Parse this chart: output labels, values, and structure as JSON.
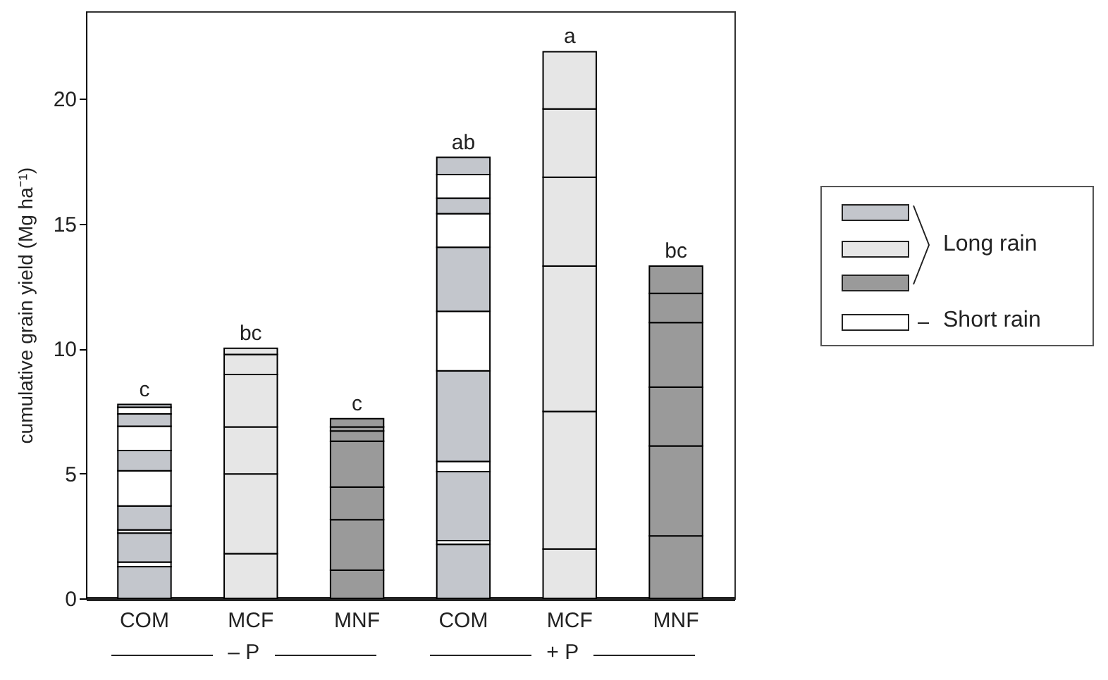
{
  "chart_data": {
    "type": "bar",
    "stacked": true,
    "ylabel": "cumulative grain yield (Mg ha⁻¹)",
    "categories": [
      "COM",
      "MCF",
      "MNF",
      "COM",
      "MCF",
      "MNF"
    ],
    "ylim": [
      0,
      23.5
    ],
    "yticks": [
      0,
      5,
      10,
      15,
      20
    ],
    "grid": false,
    "series": [
      {
        "colors": [
          "#c3c6cc",
          "#e6e6e6",
          "#9a9a9a",
          "#c3c6cc",
          "#e6e6e6",
          "#9a9a9a"
        ],
        "values": [
          1.27,
          1.79,
          1.13,
          2.16,
          1.97,
          2.5
        ]
      },
      {
        "colors": [
          "#ffffff",
          "#e6e6e6",
          "#9a9a9a",
          "#ffffff",
          "#e6e6e6",
          "#9a9a9a"
        ],
        "values": [
          0.18,
          3.19,
          2.02,
          0.15,
          5.51,
          3.6
        ]
      },
      {
        "colors": [
          "#c3c6cc",
          "#e6e6e6",
          "#9a9a9a",
          "#c3c6cc",
          "#e6e6e6",
          "#9a9a9a"
        ],
        "values": [
          1.16,
          1.88,
          1.3,
          2.76,
          5.82,
          2.35
        ]
      },
      {
        "colors": [
          "#ffffff",
          "#e6e6e6",
          "#9a9a9a",
          "#ffffff",
          "#e6e6e6",
          "#9a9a9a"
        ],
        "values": [
          0.13,
          2.1,
          1.84,
          0.41,
          3.56,
          2.59
        ]
      },
      {
        "colors": [
          "#c3c6cc",
          "#e6e6e6",
          "#9a9a9a",
          "#c3c6cc",
          "#e6e6e6",
          "#9a9a9a"
        ],
        "values": [
          0.96,
          0.8,
          0.41,
          3.63,
          2.73,
          1.17
        ]
      },
      {
        "colors": [
          "#ffffff",
          "#e6e6e6",
          "#9a9a9a",
          "#ffffff",
          "#e6e6e6",
          "#9a9a9a"
        ],
        "values": [
          1.41,
          0.25,
          0.16,
          2.38,
          2.29,
          1.09
        ]
      },
      {
        "colors": [
          "#c3c6cc",
          null,
          "#9a9a9a",
          "#c3c6cc",
          null,
          null
        ],
        "values": [
          0.81,
          null,
          0.33,
          2.56,
          null,
          null
        ]
      },
      {
        "colors": [
          "#ffffff",
          null,
          null,
          "#ffffff",
          null,
          null
        ],
        "values": [
          0.97,
          null,
          null,
          1.35,
          null,
          null
        ]
      },
      {
        "colors": [
          "#c3c6cc",
          null,
          null,
          "#c3c6cc",
          null,
          null
        ],
        "values": [
          0.49,
          null,
          null,
          0.62,
          null,
          null
        ]
      },
      {
        "colors": [
          "#ffffff",
          null,
          null,
          "#ffffff",
          null,
          null
        ],
        "values": [
          0.27,
          null,
          null,
          0.94,
          null,
          null
        ]
      },
      {
        "colors": [
          "#c3c6cc",
          null,
          null,
          "#c3c6cc",
          null,
          null
        ],
        "values": [
          0.11,
          null,
          null,
          0.69,
          null,
          null
        ]
      }
    ],
    "totals": [
      "c",
      "bc",
      "c",
      "ab",
      "a",
      "bc"
    ],
    "annotations": [
      "– P",
      "+ P",
      "Long rain",
      "Short rain"
    ]
  }
}
